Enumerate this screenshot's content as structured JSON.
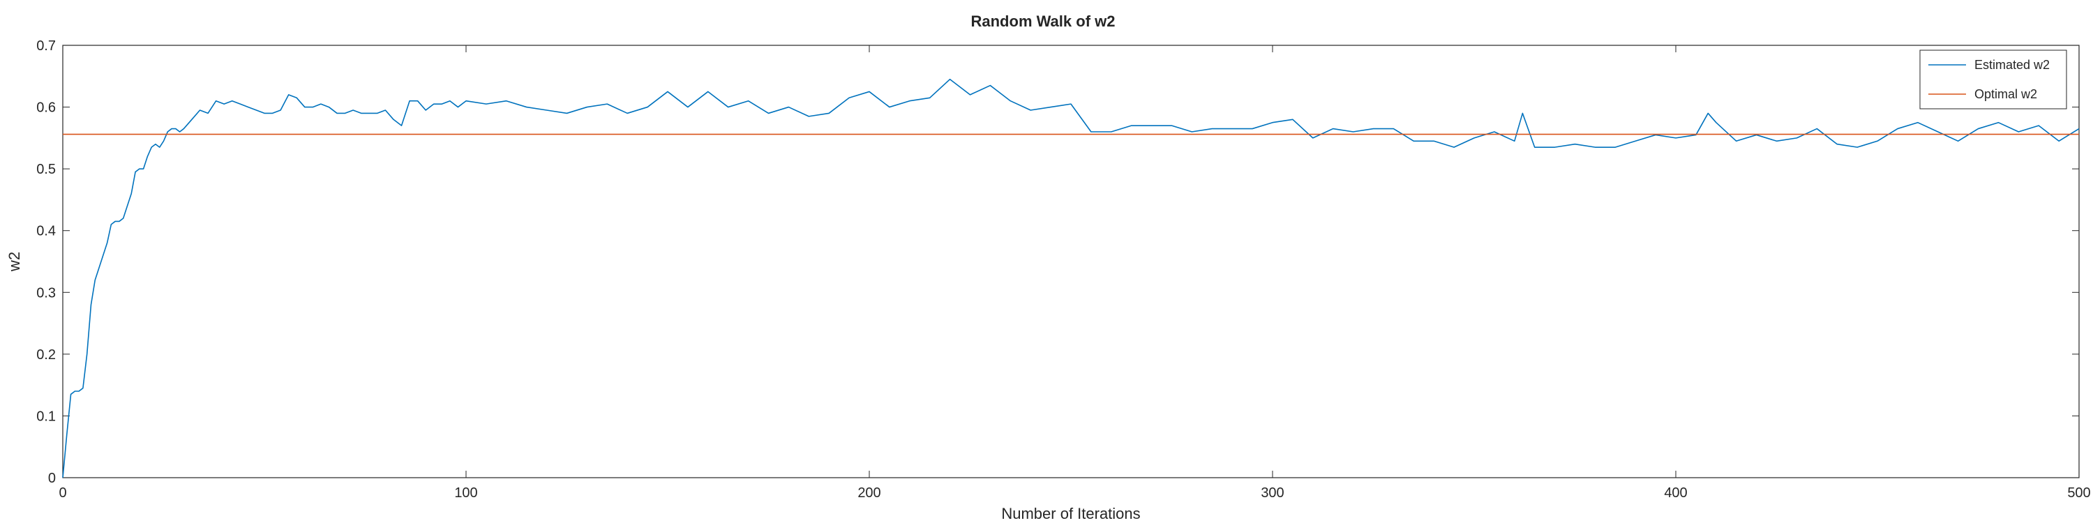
{
  "chart_data": {
    "type": "line",
    "title": "Random Walk of w2",
    "xlabel": "Number of Iterations",
    "ylabel": "w2",
    "xlim": [
      0,
      500
    ],
    "ylim": [
      0,
      0.7
    ],
    "xticks": [
      0,
      100,
      200,
      300,
      400,
      500
    ],
    "xtick_labels": [
      "0",
      "100",
      "200",
      "300",
      "400",
      "500"
    ],
    "yticks": [
      0,
      0.1,
      0.2,
      0.3,
      0.4,
      0.5,
      0.6,
      0.7
    ],
    "ytick_labels": [
      "0",
      "0.1",
      "0.2",
      "0.3",
      "0.4",
      "0.5",
      "0.6",
      "0.7"
    ],
    "grid": false,
    "legend_position": "top-right",
    "series": [
      {
        "name": "Estimated w2",
        "color": "#0072BD",
        "x": [
          0,
          1,
          2,
          3,
          4,
          5,
          6,
          7,
          8,
          9,
          10,
          11,
          12,
          13,
          14,
          15,
          16,
          17,
          18,
          19,
          20,
          21,
          22,
          23,
          24,
          25,
          26,
          27,
          28,
          29,
          30,
          32,
          34,
          36,
          38,
          40,
          42,
          44,
          46,
          48,
          50,
          52,
          54,
          56,
          58,
          60,
          62,
          64,
          66,
          68,
          70,
          72,
          74,
          76,
          78,
          80,
          82,
          84,
          86,
          88,
          90,
          92,
          94,
          96,
          98,
          100,
          105,
          110,
          115,
          120,
          125,
          130,
          135,
          140,
          145,
          150,
          155,
          160,
          165,
          170,
          175,
          180,
          185,
          190,
          195,
          200,
          205,
          210,
          215,
          220,
          225,
          230,
          235,
          240,
          245,
          250,
          255,
          260,
          265,
          270,
          275,
          280,
          285,
          290,
          295,
          300,
          305,
          310,
          315,
          320,
          325,
          330,
          335,
          340,
          345,
          350,
          355,
          360,
          362,
          365,
          370,
          375,
          380,
          385,
          390,
          395,
          400,
          405,
          408,
          410,
          415,
          420,
          425,
          430,
          435,
          440,
          445,
          450,
          455,
          460,
          465,
          470,
          475,
          480,
          485,
          490,
          495,
          500
        ],
        "y": [
          0,
          0.07,
          0.135,
          0.14,
          0.14,
          0.145,
          0.2,
          0.28,
          0.32,
          0.34,
          0.36,
          0.38,
          0.41,
          0.415,
          0.415,
          0.42,
          0.44,
          0.46,
          0.495,
          0.5,
          0.5,
          0.52,
          0.535,
          0.54,
          0.535,
          0.545,
          0.56,
          0.565,
          0.565,
          0.56,
          0.565,
          0.58,
          0.595,
          0.59,
          0.61,
          0.605,
          0.61,
          0.605,
          0.6,
          0.595,
          0.59,
          0.59,
          0.595,
          0.62,
          0.615,
          0.6,
          0.6,
          0.605,
          0.6,
          0.59,
          0.59,
          0.595,
          0.59,
          0.59,
          0.59,
          0.595,
          0.58,
          0.57,
          0.61,
          0.61,
          0.595,
          0.605,
          0.605,
          0.61,
          0.6,
          0.61,
          0.605,
          0.61,
          0.6,
          0.595,
          0.59,
          0.6,
          0.605,
          0.59,
          0.6,
          0.625,
          0.6,
          0.625,
          0.6,
          0.61,
          0.59,
          0.6,
          0.585,
          0.59,
          0.615,
          0.625,
          0.6,
          0.61,
          0.615,
          0.645,
          0.62,
          0.635,
          0.61,
          0.595,
          0.6,
          0.605,
          0.56,
          0.56,
          0.57,
          0.57,
          0.57,
          0.56,
          0.565,
          0.565,
          0.565,
          0.575,
          0.58,
          0.55,
          0.565,
          0.56,
          0.565,
          0.565,
          0.545,
          0.545,
          0.535,
          0.55,
          0.56,
          0.545,
          0.59,
          0.535,
          0.535,
          0.54,
          0.535,
          0.535,
          0.545,
          0.555,
          0.55,
          0.555,
          0.59,
          0.575,
          0.545,
          0.555,
          0.545,
          0.55,
          0.565,
          0.54,
          0.535,
          0.545,
          0.565,
          0.575,
          0.56,
          0.545,
          0.565,
          0.575,
          0.56,
          0.57,
          0.545,
          0.565
        ]
      },
      {
        "name": "Optimal w2",
        "color": "#D95319",
        "x": [
          0,
          500
        ],
        "y": [
          0.556,
          0.556
        ]
      }
    ]
  }
}
